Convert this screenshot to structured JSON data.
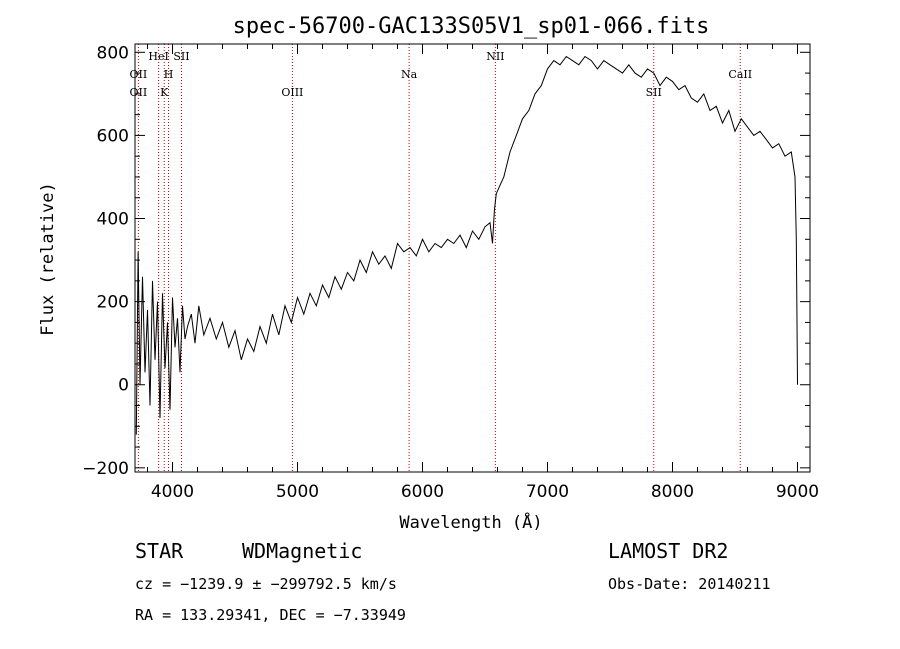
{
  "chart_data": {
    "type": "line",
    "title": "spec-56700-GAC133S05V1_sp01-066.fits",
    "xlabel": "Wavelength (Å)",
    "ylabel": "Flux (relative)",
    "xlim": [
      3700,
      9100
    ],
    "ylim": [
      -210,
      820
    ],
    "xticks": [
      4000,
      5000,
      6000,
      7000,
      8000,
      9000
    ],
    "yticks": [
      -200,
      0,
      200,
      400,
      600,
      800
    ],
    "xtick_labels": [
      "4000",
      "5000",
      "6000",
      "7000",
      "8000",
      "9000"
    ],
    "ytick_labels": [
      "−200",
      "0",
      "200",
      "400",
      "600",
      "800"
    ],
    "grid": false,
    "series": [
      {
        "color": "#000000",
        "x": [
          3710,
          3725,
          3740,
          3760,
          3780,
          3800,
          3820,
          3840,
          3860,
          3880,
          3900,
          3920,
          3940,
          3960,
          3980,
          4000,
          4020,
          4040,
          4060,
          4080,
          4100,
          4120,
          4150,
          4180,
          4210,
          4250,
          4300,
          4350,
          4400,
          4450,
          4500,
          4550,
          4600,
          4650,
          4700,
          4750,
          4800,
          4850,
          4900,
          4950,
          5000,
          5050,
          5100,
          5150,
          5200,
          5250,
          5300,
          5350,
          5400,
          5450,
          5500,
          5550,
          5600,
          5650,
          5700,
          5750,
          5800,
          5850,
          5900,
          5950,
          6000,
          6050,
          6100,
          6150,
          6200,
          6250,
          6300,
          6350,
          6400,
          6450,
          6500,
          6540,
          6560,
          6575,
          6590,
          6620,
          6650,
          6700,
          6750,
          6800,
          6850,
          6900,
          6950,
          7000,
          7050,
          7100,
          7150,
          7200,
          7250,
          7300,
          7350,
          7400,
          7450,
          7500,
          7550,
          7600,
          7650,
          7700,
          7750,
          7800,
          7850,
          7900,
          7950,
          8000,
          8050,
          8100,
          8150,
          8200,
          8250,
          8300,
          8350,
          8400,
          8450,
          8500,
          8550,
          8600,
          8650,
          8700,
          8750,
          8800,
          8850,
          8900,
          8950,
          8980,
          8990,
          8995,
          9000
        ],
        "y": [
          -120,
          320,
          0,
          260,
          30,
          180,
          -50,
          250,
          60,
          200,
          -80,
          220,
          40,
          150,
          -60,
          210,
          90,
          160,
          30,
          190,
          110,
          140,
          170,
          100,
          190,
          120,
          160,
          110,
          150,
          90,
          130,
          60,
          110,
          80,
          140,
          100,
          170,
          120,
          190,
          150,
          210,
          170,
          220,
          190,
          240,
          210,
          260,
          230,
          270,
          250,
          300,
          270,
          320,
          290,
          310,
          280,
          340,
          320,
          330,
          310,
          350,
          320,
          340,
          330,
          350,
          340,
          360,
          330,
          370,
          350,
          380,
          390,
          340,
          420,
          460,
          480,
          500,
          560,
          600,
          640,
          660,
          700,
          720,
          760,
          780,
          770,
          790,
          780,
          770,
          790,
          780,
          760,
          780,
          770,
          760,
          750,
          770,
          750,
          740,
          760,
          750,
          720,
          740,
          730,
          710,
          720,
          690,
          680,
          700,
          660,
          670,
          630,
          660,
          610,
          640,
          620,
          600,
          610,
          590,
          570,
          580,
          550,
          560,
          500,
          350,
          180,
          0
        ]
      }
    ],
    "emission_lines": [
      {
        "label": "OII",
        "x": 3727,
        "label_row": "upper"
      },
      {
        "label": "OII",
        "x": 3727,
        "label_row": "lower"
      },
      {
        "label": "HeI",
        "x": 3889,
        "label_row": "top"
      },
      {
        "label": "H",
        "x": 3968,
        "label_row": "upper"
      },
      {
        "label": "K",
        "x": 3934,
        "label_row": "lower"
      },
      {
        "label": "SII",
        "x": 4072,
        "label_row": "top"
      },
      {
        "label": "OIII",
        "x": 4959,
        "label_row": "lower"
      },
      {
        "label": "Na",
        "x": 5893,
        "label_row": "upper"
      },
      {
        "label": "NII",
        "x": 6583,
        "label_row": "top"
      },
      {
        "label": "SII",
        "x": 7850,
        "label_row": "lower"
      },
      {
        "label": "CaII",
        "x": 8542,
        "label_row": "upper"
      }
    ],
    "emission_line_color": "#cc0000"
  },
  "info": {
    "object_type": "STAR",
    "subclass": "WDMagnetic",
    "survey": "LAMOST DR2",
    "cz": "cz = −1239.9 ± −299792.5 km/s",
    "obs_date": "Obs-Date: 20140211",
    "radec": "RA = 133.29341, DEC =  −7.33949"
  }
}
